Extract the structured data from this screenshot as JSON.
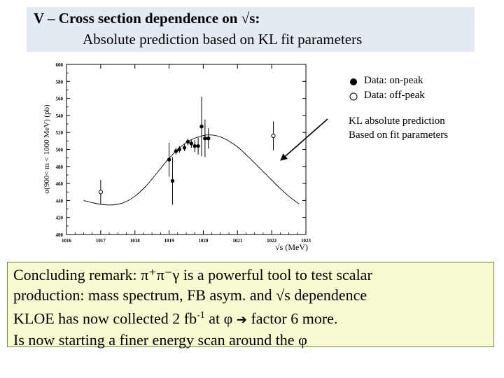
{
  "title": {
    "line1": "V – Cross section dependence on √s:",
    "line2": "Absolute prediction based on KL fit parameters"
  },
  "legend": [
    {
      "label": "Data: on-peak",
      "marker": "filled-circle"
    },
    {
      "label": "Data: off-peak",
      "marker": "open-circle"
    }
  ],
  "prediction_annotation": {
    "line1": "KL absolute prediction",
    "line2": "Based on fit parameters"
  },
  "remark": {
    "line1": "Concluding remark: π⁺π⁻γ is a powerful tool to test scalar",
    "line2": "production: mass spectrum, FB asym. and √s dependence",
    "line3_pre": "KLOE has now collected 2 fb",
    "line3_sup": "-1",
    "line3_mid": " at φ ",
    "line3_arrow": "➔",
    "line3_post": " factor 6 more.",
    "line4": "Is now starting a finer energy scan around the φ"
  },
  "chart_data": {
    "type": "scatter",
    "xlabel": "√s (MeV)",
    "ylabel": "σ(900< m < 1000 MeV) (pb)",
    "xlim": [
      1016,
      1023
    ],
    "ylim": [
      400,
      600
    ],
    "xticks": [
      1016,
      1017,
      1018,
      1019,
      1020,
      1021,
      1022,
      1023
    ],
    "xtick_labels": [
      "1016",
      "1017",
      "1018",
      "1019",
      "1020",
      "1021",
      "1022",
      "1023"
    ],
    "yticks": [
      400,
      420,
      440,
      460,
      480,
      500,
      520,
      540,
      560,
      580,
      600
    ],
    "ytick_labels": [
      "400",
      "420",
      "440",
      "460",
      "480",
      "500",
      "520",
      "540",
      "560",
      "580",
      "600"
    ],
    "on_peak": [
      {
        "x": 1019.0,
        "y": 488,
        "err": 20
      },
      {
        "x": 1019.1,
        "y": 463,
        "err": 28
      },
      {
        "x": 1019.2,
        "y": 498,
        "err": 4
      },
      {
        "x": 1019.3,
        "y": 500,
        "err": 4
      },
      {
        "x": 1019.45,
        "y": 502,
        "err": 4
      },
      {
        "x": 1019.55,
        "y": 509,
        "err": 4
      },
      {
        "x": 1019.65,
        "y": 507,
        "err": 5
      },
      {
        "x": 1019.75,
        "y": 504,
        "err": 7
      },
      {
        "x": 1019.85,
        "y": 504,
        "err": 10
      },
      {
        "x": 1019.95,
        "y": 527,
        "err": 35
      },
      {
        "x": 1020.05,
        "y": 513,
        "err": 22
      },
      {
        "x": 1020.15,
        "y": 513,
        "err": 12
      }
    ],
    "off_peak": [
      {
        "x": 1017.0,
        "y": 450,
        "err": 14
      },
      {
        "x": 1022.05,
        "y": 516,
        "err": 17
      }
    ],
    "prediction_curve": {
      "x": [
        1016.5,
        1016.8,
        1017.1,
        1017.4,
        1017.7,
        1018.0,
        1018.3,
        1018.6,
        1018.9,
        1019.2,
        1019.5,
        1019.8,
        1020.1,
        1020.4,
        1020.7,
        1021.0,
        1021.3,
        1021.6,
        1021.9,
        1022.2,
        1022.5,
        1022.8
      ],
      "y": [
        440,
        437,
        435,
        435,
        438,
        445,
        456,
        470,
        485,
        498,
        508,
        514,
        517,
        516,
        511,
        503,
        492,
        480,
        468,
        456,
        445,
        436
      ]
    }
  }
}
